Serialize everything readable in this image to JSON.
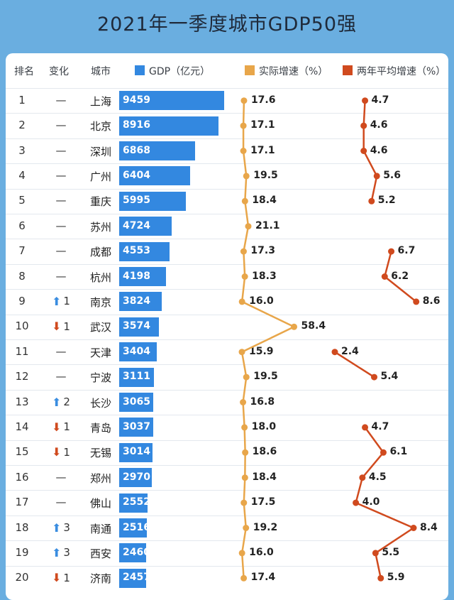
{
  "title": "2021年一季度城市GDP50强",
  "headers": {
    "rank": "排名",
    "change": "变化",
    "city": "城市",
    "gdp": "GDP（亿元）",
    "growth": "实际增速（%）",
    "avg": "两年平均增速（%）"
  },
  "colors": {
    "gdp": "#3388e0",
    "growth": "#e8a64a",
    "avg": "#d04a1e",
    "up": "#3a8de0",
    "down": "#d04a1e"
  },
  "chart_data": {
    "type": "table",
    "title": "2021年一季度城市GDP50强",
    "columns": [
      "排名",
      "变化",
      "城市",
      "GDP（亿元）",
      "实际增速（%）",
      "两年平均增速（%）"
    ],
    "rows": [
      {
        "rank": "1",
        "change": "—",
        "dir": "",
        "city": "上海",
        "gdp": 9459,
        "growth": 17.6,
        "avg": 4.7
      },
      {
        "rank": "2",
        "change": "—",
        "dir": "",
        "city": "北京",
        "gdp": 8916,
        "growth": 17.1,
        "avg": 4.6
      },
      {
        "rank": "3",
        "change": "—",
        "dir": "",
        "city": "深圳",
        "gdp": 6868,
        "growth": 17.1,
        "avg": 4.6
      },
      {
        "rank": "4",
        "change": "—",
        "dir": "",
        "city": "广州",
        "gdp": 6404,
        "growth": 19.5,
        "avg": 5.6
      },
      {
        "rank": "5",
        "change": "—",
        "dir": "",
        "city": "重庆",
        "gdp": 5995,
        "growth": 18.4,
        "avg": 5.2
      },
      {
        "rank": "6",
        "change": "—",
        "dir": "",
        "city": "苏州",
        "gdp": 4724,
        "growth": 21.1,
        "avg": null
      },
      {
        "rank": "7",
        "change": "—",
        "dir": "",
        "city": "成都",
        "gdp": 4553,
        "growth": 17.3,
        "avg": 6.7
      },
      {
        "rank": "8",
        "change": "—",
        "dir": "",
        "city": "杭州",
        "gdp": 4198,
        "growth": 18.3,
        "avg": 6.2
      },
      {
        "rank": "9",
        "change": "1",
        "dir": "up",
        "city": "南京",
        "gdp": 3824,
        "growth": 16.0,
        "avg": 8.6
      },
      {
        "rank": "10",
        "change": "1",
        "dir": "down",
        "city": "武汉",
        "gdp": 3574,
        "growth": 58.4,
        "avg": null
      },
      {
        "rank": "11",
        "change": "—",
        "dir": "",
        "city": "天津",
        "gdp": 3404,
        "growth": 15.9,
        "avg": 2.4
      },
      {
        "rank": "12",
        "change": "—",
        "dir": "",
        "city": "宁波",
        "gdp": 3111,
        "growth": 19.5,
        "avg": 5.4
      },
      {
        "rank": "13",
        "change": "2",
        "dir": "up",
        "city": "长沙",
        "gdp": 3065,
        "growth": 16.8,
        "avg": null
      },
      {
        "rank": "14",
        "change": "1",
        "dir": "down",
        "city": "青岛",
        "gdp": 3037,
        "growth": 18.0,
        "avg": 4.7
      },
      {
        "rank": "15",
        "change": "1",
        "dir": "down",
        "city": "无锡",
        "gdp": 3014,
        "growth": 18.6,
        "avg": 6.1
      },
      {
        "rank": "16",
        "change": "—",
        "dir": "",
        "city": "郑州",
        "gdp": 2970,
        "growth": 18.4,
        "avg": 4.5
      },
      {
        "rank": "17",
        "change": "—",
        "dir": "",
        "city": "佛山",
        "gdp": 2552,
        "growth": 17.5,
        "avg": 4.0
      },
      {
        "rank": "18",
        "change": "3",
        "dir": "up",
        "city": "南通",
        "gdp": 2516,
        "growth": 19.2,
        "avg": 8.4
      },
      {
        "rank": "19",
        "change": "3",
        "dir": "up",
        "city": "西安",
        "gdp": 2460,
        "growth": 16.0,
        "avg": 5.5
      },
      {
        "rank": "20",
        "change": "1",
        "dir": "down",
        "city": "济南",
        "gdp": 2457,
        "growth": 17.4,
        "avg": 5.9
      }
    ]
  }
}
